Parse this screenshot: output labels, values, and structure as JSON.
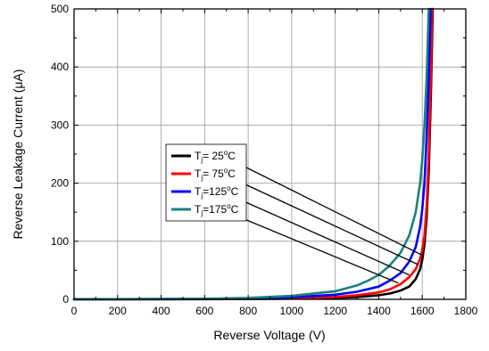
{
  "chart_data": {
    "type": "line",
    "title": "",
    "xlabel": "Reverse Voltage (V)",
    "ylabel": "Reverse Leakage Current (μA)",
    "xlim": [
      0,
      1800
    ],
    "ylim": [
      0,
      500
    ],
    "x_ticks": [
      "0",
      "200",
      "400",
      "600",
      "800",
      "1000",
      "1200",
      "1400",
      "1600",
      "1800"
    ],
    "y_ticks": [
      "0",
      "100",
      "200",
      "300",
      "400",
      "500"
    ],
    "grid": true,
    "legend_placement": "center-left",
    "series": [
      {
        "legend": {
          "prefix": "T",
          "sub": "j",
          "mid": "=  25",
          "unit": "C"
        },
        "color": "#000000",
        "points": [
          [
            0,
            0
          ],
          [
            600,
            0.3
          ],
          [
            800,
            0.6
          ],
          [
            1000,
            1.2
          ],
          [
            1200,
            2.5
          ],
          [
            1300,
            4
          ],
          [
            1400,
            7
          ],
          [
            1450,
            10
          ],
          [
            1500,
            15
          ],
          [
            1540,
            22
          ],
          [
            1570,
            35
          ],
          [
            1590,
            52
          ],
          [
            1600,
            68
          ],
          [
            1610,
            95
          ],
          [
            1620,
            140
          ],
          [
            1630,
            220
          ],
          [
            1640,
            360
          ],
          [
            1648,
            500
          ]
        ]
      },
      {
        "legend": {
          "prefix": "T",
          "sub": "j",
          "mid": "=  75",
          "unit": "C"
        },
        "color": "#ff0000",
        "points": [
          [
            0,
            0
          ],
          [
            600,
            0.4
          ],
          [
            800,
            0.8
          ],
          [
            1000,
            1.8
          ],
          [
            1200,
            4
          ],
          [
            1300,
            7
          ],
          [
            1400,
            12
          ],
          [
            1450,
            17
          ],
          [
            1500,
            26
          ],
          [
            1540,
            38
          ],
          [
            1570,
            52
          ],
          [
            1590,
            70
          ],
          [
            1600,
            85
          ],
          [
            1610,
            110
          ],
          [
            1620,
            160
          ],
          [
            1630,
            250
          ],
          [
            1640,
            400
          ],
          [
            1645,
            500
          ]
        ]
      },
      {
        "legend": {
          "prefix": "T",
          "sub": "j",
          "mid": "=125",
          "unit": "C"
        },
        "color": "#0000ff",
        "points": [
          [
            0,
            0
          ],
          [
            600,
            0.8
          ],
          [
            800,
            1.5
          ],
          [
            1000,
            3.5
          ],
          [
            1200,
            8
          ],
          [
            1300,
            13
          ],
          [
            1400,
            22
          ],
          [
            1450,
            32
          ],
          [
            1500,
            45
          ],
          [
            1540,
            65
          ],
          [
            1570,
            90
          ],
          [
            1590,
            125
          ],
          [
            1600,
            155
          ],
          [
            1610,
            200
          ],
          [
            1620,
            280
          ],
          [
            1630,
            380
          ],
          [
            1638,
            500
          ]
        ]
      },
      {
        "legend": {
          "prefix": "T",
          "sub": "j",
          "mid": "=175",
          "unit": "C"
        },
        "color": "#1a8080",
        "points": [
          [
            0,
            0
          ],
          [
            600,
            1
          ],
          [
            800,
            2.5
          ],
          [
            1000,
            6
          ],
          [
            1200,
            14
          ],
          [
            1300,
            24
          ],
          [
            1350,
            32
          ],
          [
            1400,
            42
          ],
          [
            1450,
            58
          ],
          [
            1500,
            80
          ],
          [
            1540,
            110
          ],
          [
            1570,
            150
          ],
          [
            1590,
            200
          ],
          [
            1600,
            240
          ],
          [
            1610,
            300
          ],
          [
            1620,
            380
          ],
          [
            1630,
            500
          ]
        ]
      }
    ],
    "annotation_targets": [
      [
        1605,
        75
      ],
      [
        1580,
        60
      ],
      [
        1540,
        42
      ],
      [
        1490,
        28
      ]
    ]
  }
}
